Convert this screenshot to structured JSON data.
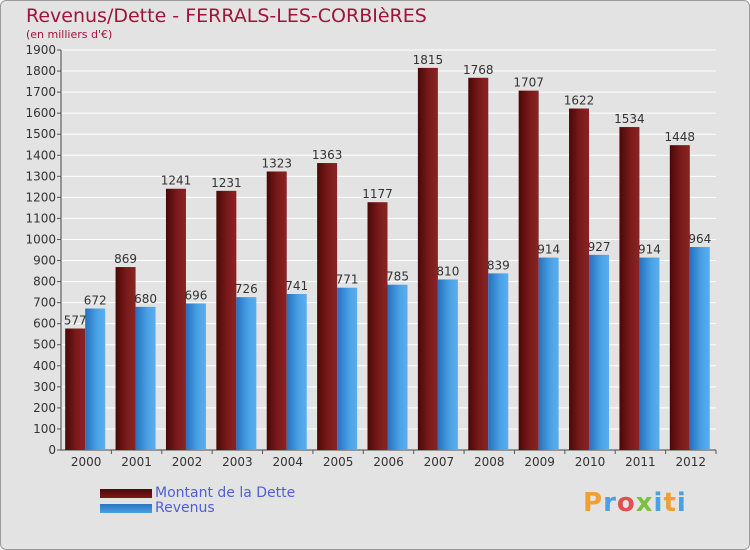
{
  "chart_data": {
    "type": "bar",
    "title": "Revenus/Dette - FERRALS-LES-CORBIèRES",
    "subtitle": "(en milliers d'€)",
    "xlabel": "",
    "ylabel": "",
    "ylim": [
      0,
      1900
    ],
    "yticks": [
      0,
      100,
      200,
      300,
      400,
      500,
      600,
      700,
      800,
      900,
      1000,
      1100,
      1200,
      1300,
      1400,
      1500,
      1600,
      1700,
      1800,
      1900
    ],
    "grid": true,
    "categories": [
      "2000",
      "2001",
      "2002",
      "2003",
      "2004",
      "2005",
      "2006",
      "2007",
      "2008",
      "2009",
      "2010",
      "2011",
      "2012"
    ],
    "series": [
      {
        "name": "Montant de la Dette",
        "color": "#6e1414",
        "values": [
          577,
          869,
          1241,
          1231,
          1323,
          1363,
          1177,
          1815,
          1768,
          1707,
          1622,
          1534,
          1448
        ]
      },
      {
        "name": "Revenus",
        "color": "#3e96dd",
        "values": [
          672,
          680,
          696,
          726,
          741,
          771,
          785,
          810,
          839,
          914,
          927,
          914,
          964
        ]
      }
    ],
    "legend": "bottom-left"
  },
  "brand": {
    "text": "Proxiti",
    "colors": [
      "#f0a030",
      "#4aa0e0",
      "#e05050",
      "#7cc040",
      "#4aa0e0",
      "#f0a030",
      "#4aa0e0"
    ]
  }
}
